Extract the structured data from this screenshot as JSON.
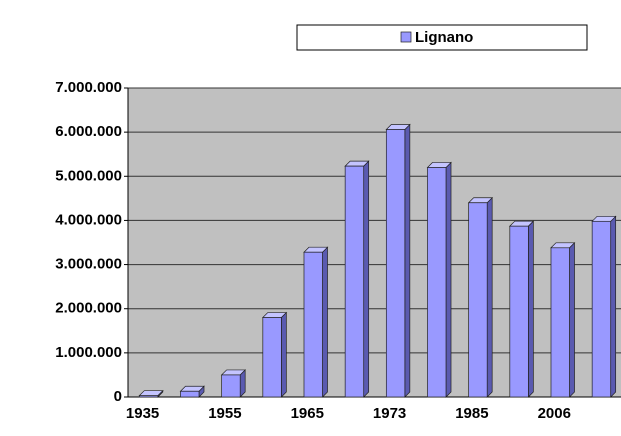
{
  "chart_data": {
    "type": "bar",
    "categories": [
      "1935",
      null,
      "1955",
      null,
      "1965",
      null,
      "1973",
      null,
      "1985",
      null,
      "2006",
      null
    ],
    "series": [
      {
        "name": "Lignano",
        "color": "#9999ff",
        "values": [
          30000,
          130000,
          500000,
          1800000,
          3280000,
          5230000,
          6060000,
          5200000,
          4400000,
          3870000,
          3380000,
          3980000
        ]
      }
    ],
    "ylim": [
      0,
      7000000
    ],
    "yticks": [
      0,
      {
        "value": 1000000,
        "label": "1.000.000"
      },
      {
        "value": 2000000,
        "label": "2.000.000"
      },
      {
        "value": 3000000,
        "label": "3.000.000"
      },
      {
        "value": 4000000,
        "label": "4.000.000"
      },
      {
        "value": 5000000,
        "label": "5.000.000"
      },
      {
        "value": 6000000,
        "label": "6.000.000"
      },
      {
        "value": 7000000,
        "label": "7.000.000"
      }
    ],
    "grid": true,
    "legend": "top"
  }
}
